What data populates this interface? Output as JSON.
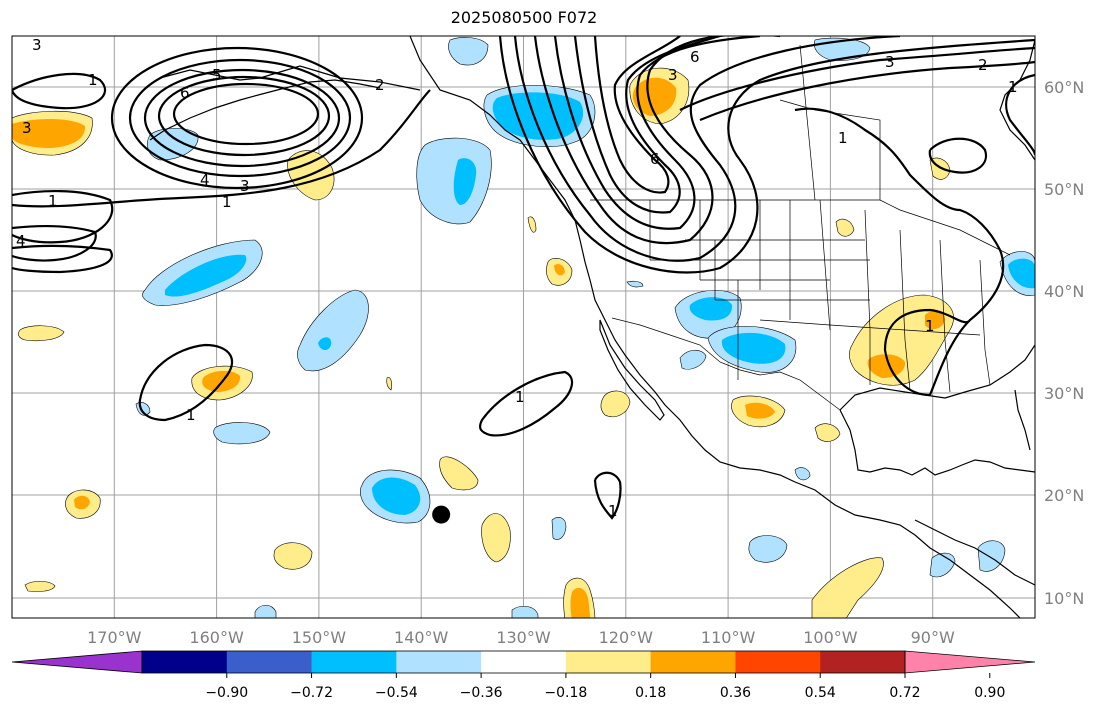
{
  "title": "2025080500 F072",
  "map": {
    "lon_labels": [
      "170°W",
      "160°W",
      "150°W",
      "140°W",
      "130°W",
      "120°W",
      "110°W",
      "100°W",
      "90°W"
    ],
    "lat_labels": [
      "60°N",
      "50°N",
      "40°N",
      "30°N",
      "20°N",
      "10°N"
    ],
    "lon_range": [
      -180,
      -80
    ],
    "lat_range": [
      8,
      65
    ],
    "marker": {
      "lon": -138,
      "lat": 18
    }
  },
  "colorbar": {
    "ticks": [
      "−0.90",
      "−0.72",
      "−0.54",
      "−0.36",
      "−0.18",
      "0.18",
      "0.36",
      "0.54",
      "0.72",
      "0.90"
    ],
    "colors": [
      "#9a32cd",
      "#00008b",
      "#3a5fcd",
      "#00bfff",
      "#b0e2ff",
      "#ffffff",
      "#ffec8b",
      "#ffa500",
      "#ff4500",
      "#b22222",
      "#ff82ab"
    ]
  },
  "contour_labels": [
    "3",
    "1",
    "6",
    "5",
    "2",
    "3",
    "4",
    "3",
    "1",
    "4",
    "1",
    "1",
    "1",
    "6",
    "3",
    "2",
    "1",
    "3",
    "6",
    "1",
    "1",
    "1"
  ]
}
